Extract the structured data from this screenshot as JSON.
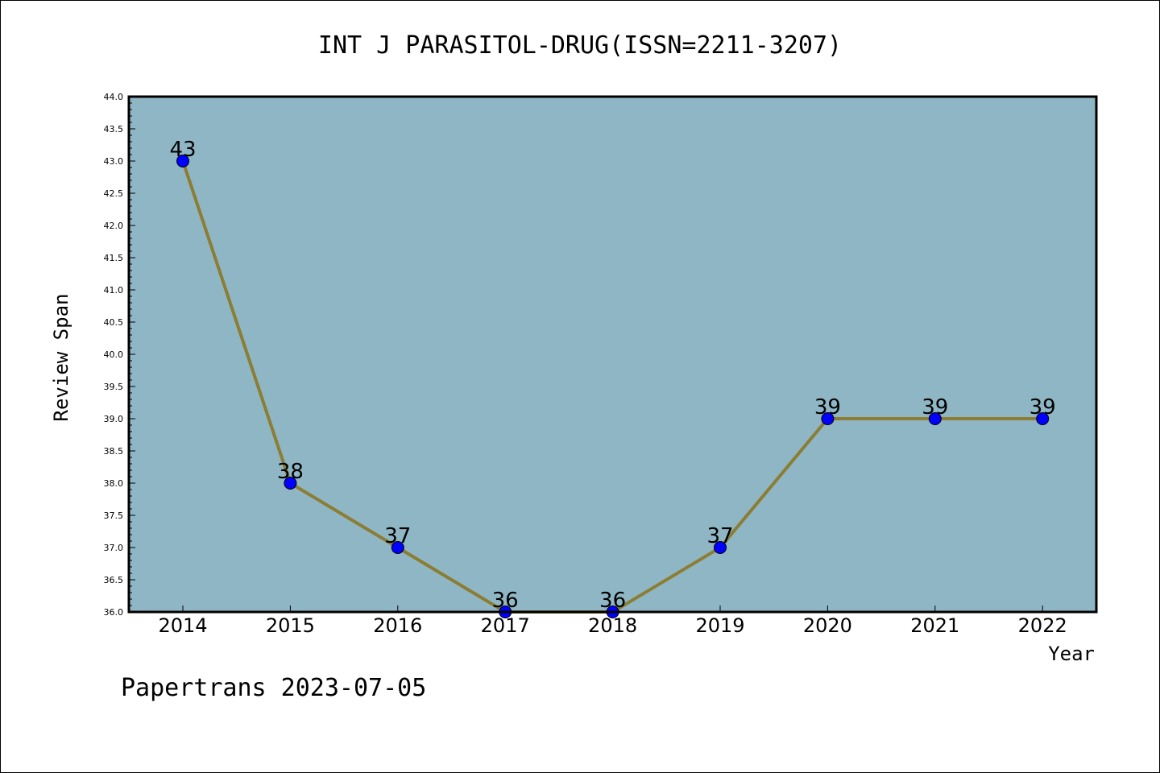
{
  "chart_data": {
    "type": "line",
    "title": "INT J PARASITOL-DRUG(ISSN=2211-3207)",
    "xlabel": "Year",
    "ylabel": "Review Span",
    "categories": [
      "2014",
      "2015",
      "2016",
      "2017",
      "2018",
      "2019",
      "2020",
      "2021",
      "2022"
    ],
    "series": [
      {
        "values": [
          43,
          38,
          37,
          36,
          36,
          37,
          39,
          39,
          39
        ]
      }
    ],
    "ylim": [
      36.0,
      44.0
    ],
    "ytick_step": 0.5,
    "grid": false,
    "data_labels": true,
    "colors": {
      "plot_background": "#8fb6c4",
      "line": "#8c7d34",
      "marker": "#0000ff"
    }
  },
  "footer": "Papertrans 2023-07-05"
}
